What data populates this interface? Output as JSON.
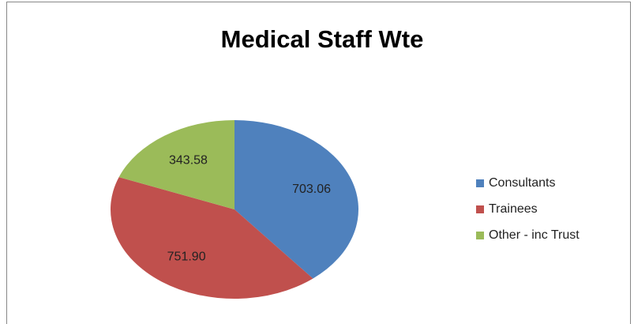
{
  "chart_data": {
    "type": "pie",
    "title": "Medical Staff Wte",
    "categories": [
      "Consultants",
      "Trainees",
      "Other - inc Trust"
    ],
    "values": [
      703.06,
      751.9,
      343.58
    ],
    "value_labels": [
      "703.06",
      "751.90",
      "343.58"
    ],
    "colors": [
      "#4f81bd",
      "#c0504d",
      "#9bbb59"
    ],
    "legend": "right"
  }
}
